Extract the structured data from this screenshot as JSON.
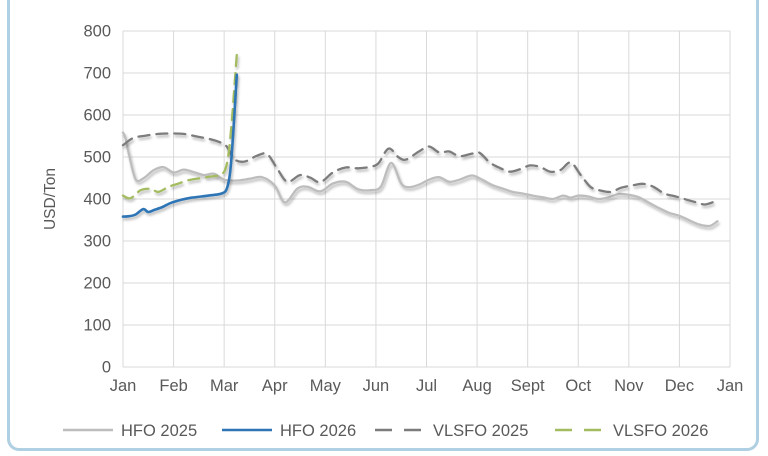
{
  "chart_data": {
    "type": "line",
    "title": "",
    "xlabel": "",
    "ylabel": "USD/Ton",
    "ylim": [
      0,
      800
    ],
    "ytick_step": 100,
    "yticks": [
      0,
      100,
      200,
      300,
      400,
      500,
      600,
      700,
      800
    ],
    "x_tick_labels": [
      "Jan",
      "Feb",
      "Mar",
      "Apr",
      "May",
      "Jun",
      "Jul",
      "Aug",
      "Sept",
      "Oct",
      "Nov",
      "Dec",
      "Jan"
    ],
    "x_range_months": [
      0,
      12
    ],
    "grid": true,
    "legend_position": "bottom",
    "legend_entries": [
      "HFO 2025",
      "HFO 2026",
      "VLSFO 2025",
      "VLSFO 2026"
    ],
    "series": [
      {
        "name": "HFO 2025",
        "color": "#BDBDBD",
        "style": "solid",
        "points": [
          [
            0.0,
            558
          ],
          [
            0.05,
            545
          ],
          [
            0.12,
            505
          ],
          [
            0.25,
            447
          ],
          [
            0.4,
            449
          ],
          [
            0.6,
            468
          ],
          [
            0.8,
            476
          ],
          [
            1.0,
            463
          ],
          [
            1.2,
            470
          ],
          [
            1.4,
            464
          ],
          [
            1.6,
            457
          ],
          [
            1.8,
            460
          ],
          [
            2.0,
            446
          ],
          [
            2.25,
            444
          ],
          [
            2.5,
            448
          ],
          [
            2.75,
            452
          ],
          [
            3.0,
            432
          ],
          [
            3.2,
            392
          ],
          [
            3.45,
            425
          ],
          [
            3.65,
            429
          ],
          [
            3.9,
            418
          ],
          [
            4.15,
            437
          ],
          [
            4.4,
            441
          ],
          [
            4.65,
            423
          ],
          [
            4.9,
            421
          ],
          [
            5.1,
            430
          ],
          [
            5.3,
            486
          ],
          [
            5.5,
            437
          ],
          [
            5.65,
            428
          ],
          [
            5.85,
            434
          ],
          [
            6.05,
            446
          ],
          [
            6.25,
            452
          ],
          [
            6.45,
            441
          ],
          [
            6.65,
            446
          ],
          [
            6.9,
            456
          ],
          [
            7.1,
            446
          ],
          [
            7.3,
            433
          ],
          [
            7.5,
            425
          ],
          [
            7.7,
            417
          ],
          [
            7.9,
            413
          ],
          [
            8.1,
            408
          ],
          [
            8.3,
            404
          ],
          [
            8.5,
            400
          ],
          [
            8.7,
            408
          ],
          [
            8.85,
            403
          ],
          [
            9.0,
            408
          ],
          [
            9.2,
            406
          ],
          [
            9.4,
            400
          ],
          [
            9.6,
            404
          ],
          [
            9.8,
            412
          ],
          [
            10.0,
            410
          ],
          [
            10.2,
            404
          ],
          [
            10.4,
            391
          ],
          [
            10.6,
            378
          ],
          [
            10.8,
            367
          ],
          [
            11.0,
            360
          ],
          [
            11.2,
            349
          ],
          [
            11.4,
            339
          ],
          [
            11.6,
            336
          ],
          [
            11.75,
            347
          ]
        ]
      },
      {
        "name": "VLSFO 2025",
        "color": "#7C7C7C",
        "style": "dashed",
        "points": [
          [
            0.0,
            528
          ],
          [
            0.2,
            545
          ],
          [
            0.45,
            551
          ],
          [
            0.7,
            555
          ],
          [
            0.95,
            556
          ],
          [
            1.2,
            555
          ],
          [
            1.45,
            549
          ],
          [
            1.7,
            543
          ],
          [
            1.9,
            536
          ],
          [
            2.05,
            525
          ],
          [
            2.2,
            495
          ],
          [
            2.4,
            489
          ],
          [
            2.65,
            503
          ],
          [
            2.85,
            507
          ],
          [
            3.05,
            472
          ],
          [
            3.25,
            441
          ],
          [
            3.5,
            457
          ],
          [
            3.7,
            451
          ],
          [
            3.9,
            440
          ],
          [
            4.15,
            463
          ],
          [
            4.4,
            475
          ],
          [
            4.65,
            473
          ],
          [
            4.9,
            477
          ],
          [
            5.05,
            485
          ],
          [
            5.25,
            520
          ],
          [
            5.45,
            499
          ],
          [
            5.6,
            494
          ],
          [
            5.85,
            513
          ],
          [
            6.05,
            525
          ],
          [
            6.25,
            511
          ],
          [
            6.45,
            513
          ],
          [
            6.65,
            502
          ],
          [
            6.9,
            508
          ],
          [
            7.05,
            510
          ],
          [
            7.25,
            487
          ],
          [
            7.45,
            474
          ],
          [
            7.65,
            465
          ],
          [
            7.85,
            471
          ],
          [
            8.05,
            480
          ],
          [
            8.25,
            476
          ],
          [
            8.45,
            465
          ],
          [
            8.65,
            469
          ],
          [
            8.85,
            487
          ],
          [
            9.05,
            457
          ],
          [
            9.25,
            428
          ],
          [
            9.45,
            420
          ],
          [
            9.65,
            417
          ],
          [
            9.85,
            427
          ],
          [
            10.1,
            433
          ],
          [
            10.3,
            436
          ],
          [
            10.5,
            428
          ],
          [
            10.7,
            413
          ],
          [
            10.9,
            407
          ],
          [
            11.1,
            400
          ],
          [
            11.3,
            393
          ],
          [
            11.5,
            387
          ],
          [
            11.7,
            394
          ]
        ]
      },
      {
        "name": "VLSFO 2026",
        "color": "#A4BC60",
        "style": "dashed",
        "points": [
          [
            0.0,
            408
          ],
          [
            0.15,
            402
          ],
          [
            0.35,
            421
          ],
          [
            0.55,
            424
          ],
          [
            0.7,
            417
          ],
          [
            0.9,
            429
          ],
          [
            1.1,
            437
          ],
          [
            1.3,
            445
          ],
          [
            1.5,
            449
          ],
          [
            1.7,
            453
          ],
          [
            1.9,
            457
          ],
          [
            2.02,
            470
          ],
          [
            2.1,
            520
          ],
          [
            2.17,
            615
          ],
          [
            2.25,
            744
          ]
        ]
      },
      {
        "name": "HFO 2026",
        "color": "#2E75B6",
        "style": "solid",
        "points": [
          [
            0.0,
            358
          ],
          [
            0.12,
            359
          ],
          [
            0.25,
            363
          ],
          [
            0.4,
            376
          ],
          [
            0.5,
            369
          ],
          [
            0.62,
            374
          ],
          [
            0.78,
            381
          ],
          [
            0.95,
            391
          ],
          [
            1.15,
            398
          ],
          [
            1.35,
            403
          ],
          [
            1.55,
            406
          ],
          [
            1.75,
            409
          ],
          [
            1.95,
            413
          ],
          [
            2.05,
            424
          ],
          [
            2.12,
            465
          ],
          [
            2.18,
            560
          ],
          [
            2.25,
            696
          ]
        ]
      }
    ]
  },
  "colors": {
    "gridline": "#D9D9D9",
    "axis_text": "#595959",
    "frame_border": "#AFD0E2",
    "background": "#FFFFFF"
  }
}
